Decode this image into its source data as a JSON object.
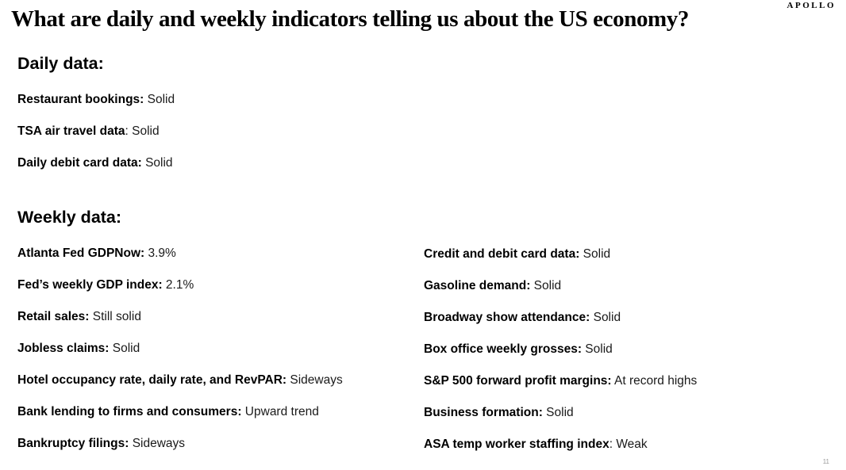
{
  "logo_text": "APOLLO",
  "title": "What are daily and weekly indicators telling us about the US economy?",
  "page_number": "11",
  "daily": {
    "heading": "Daily data:",
    "items": [
      {
        "label": "Restaurant bookings:",
        "value": " Solid"
      },
      {
        "label": "TSA air travel data",
        "value": ": Solid"
      },
      {
        "label": "Daily debit card data:",
        "value": " Solid"
      }
    ]
  },
  "weekly": {
    "heading": "Weekly data:",
    "left_items": [
      {
        "label": "Atlanta Fed GDPNow:",
        "value": " 3.9%"
      },
      {
        "label": "Fed’s weekly GDP index:",
        "value": " 2.1%"
      },
      {
        "label": "Retail sales:",
        "value": " Still solid"
      },
      {
        "label": "Jobless claims:",
        "value": " Solid"
      },
      {
        "label": "Hotel occupancy rate, daily rate, and RevPAR:",
        "value": " Sideways"
      },
      {
        "label": "Bank lending to firms and consumers:",
        "value": " Upward trend"
      },
      {
        "label": "Bankruptcy filings:",
        "value": " Sideways"
      }
    ],
    "right_items": [
      {
        "label": "Credit and debit card data:",
        "value": " Solid"
      },
      {
        "label": "Gasoline demand:",
        "value": " Solid"
      },
      {
        "label": "Broadway show attendance:",
        "value": " Solid"
      },
      {
        "label": "Box office weekly grosses:",
        "value": " Solid"
      },
      {
        "label": "S&P 500 forward profit margins:",
        "value": " At record highs"
      },
      {
        "label": "Business formation:",
        "value": " Solid"
      },
      {
        "label": "ASA temp worker staffing index",
        "value": ": Weak"
      }
    ]
  }
}
